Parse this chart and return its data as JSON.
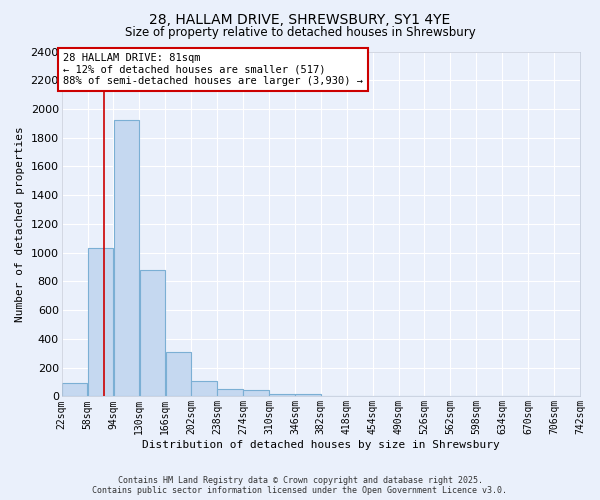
{
  "title_line1": "28, HALLAM DRIVE, SHREWSBURY, SY1 4YE",
  "title_line2": "Size of property relative to detached houses in Shrewsbury",
  "xlabel": "Distribution of detached houses by size in Shrewsbury",
  "ylabel": "Number of detached properties",
  "bin_edges": [
    22,
    58,
    94,
    130,
    166,
    202,
    238,
    274,
    310,
    346,
    382,
    418,
    454,
    490,
    526,
    562,
    598,
    634,
    670,
    706,
    742
  ],
  "bar_heights": [
    90,
    1030,
    1920,
    880,
    310,
    110,
    50,
    45,
    20,
    20,
    0,
    0,
    0,
    0,
    0,
    0,
    0,
    0,
    0,
    0
  ],
  "bar_color": "#c5d8f0",
  "bar_edge_color": "#7bafd4",
  "property_size": 81,
  "vline_color": "#cc0000",
  "annotation_text": "28 HALLAM DRIVE: 81sqm\n← 12% of detached houses are smaller (517)\n88% of semi-detached houses are larger (3,930) →",
  "annotation_box_color": "#cc0000",
  "annotation_bg": "#ffffff",
  "ylim": [
    0,
    2400
  ],
  "yticks": [
    0,
    200,
    400,
    600,
    800,
    1000,
    1200,
    1400,
    1600,
    1800,
    2000,
    2200,
    2400
  ],
  "bg_color": "#eaf0fb",
  "plot_bg_color": "#eaf0fb",
  "grid_color": "#ffffff",
  "footer_line1": "Contains HM Land Registry data © Crown copyright and database right 2025.",
  "footer_line2": "Contains public sector information licensed under the Open Government Licence v3.0."
}
